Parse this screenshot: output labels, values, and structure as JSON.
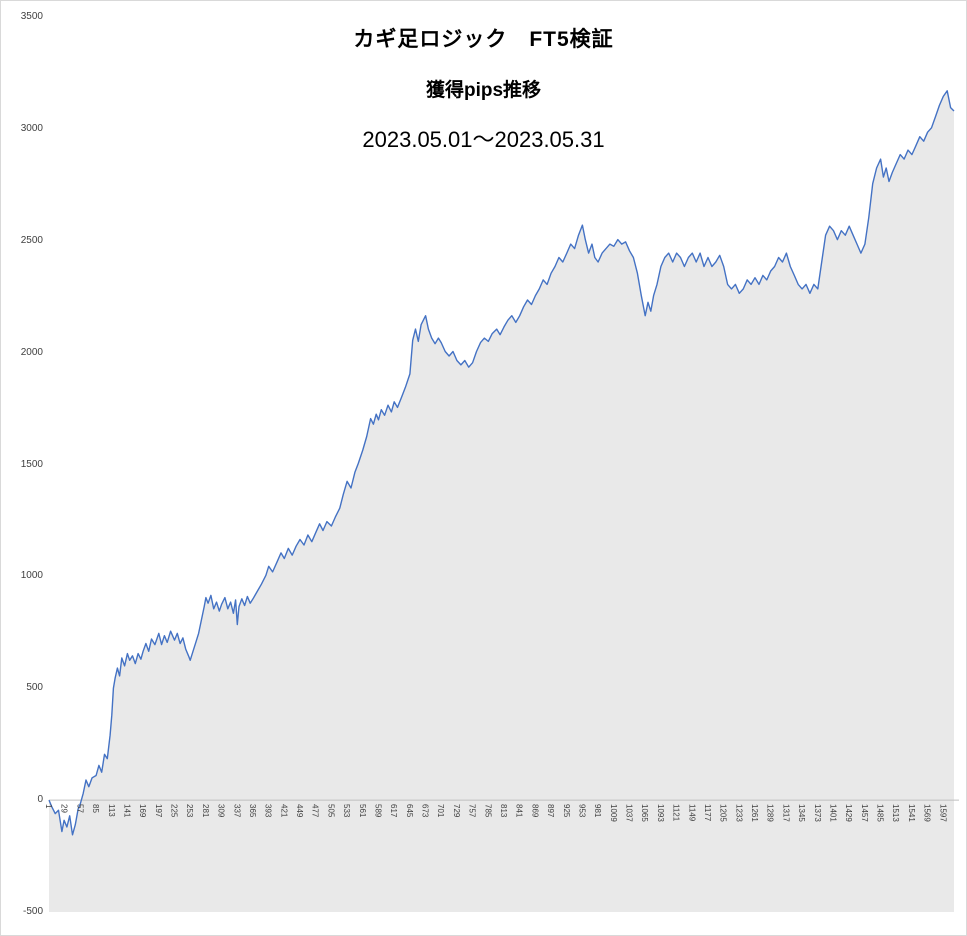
{
  "title": {
    "line1": "カギ足ロジック　FT5検証",
    "line2": "獲得pips推移",
    "line3": "2023.05.01～2023.05.31"
  },
  "chart_data": {
    "type": "area",
    "title": "カギ足ロジック FT5検証 獲得pips推移 2023.05.01～2023.05.31",
    "xlabel": "",
    "ylabel": "",
    "legend": "none",
    "grid": "off",
    "y_min": -500,
    "y_max": 3500,
    "x_min": 1,
    "x_max": 1625,
    "y_ticks": [
      3500,
      3000,
      2500,
      2000,
      1500,
      1000,
      500,
      0,
      -500
    ],
    "x_tick_step": 28,
    "x_tick_labels": [
      "1",
      "29",
      "57",
      "85",
      "113",
      "141",
      "169",
      "197",
      "225",
      "253",
      "281",
      "309",
      "337",
      "365",
      "393",
      "421",
      "449",
      "477",
      "505",
      "533",
      "561",
      "589",
      "617",
      "645",
      "673",
      "701",
      "729",
      "757",
      "785",
      "813",
      "841",
      "869",
      "897",
      "925",
      "953",
      "981",
      "1009",
      "1037",
      "1065",
      "1093",
      "1121",
      "1149",
      "1177",
      "1205",
      "1233",
      "1261",
      "1289",
      "1317",
      "1345",
      "1373",
      "1401",
      "1429",
      "1457",
      "1485",
      "1513",
      "1541",
      "1569",
      "1597"
    ],
    "colors": {
      "line": "#4472C4",
      "fill": "#e9e9e9",
      "zero_axis": "#bfbfbf",
      "tick_text": "#404040"
    },
    "series": [
      {
        "name": "獲得pips",
        "points": [
          [
            1,
            0
          ],
          [
            6,
            -30
          ],
          [
            12,
            -60
          ],
          [
            18,
            -45
          ],
          [
            24,
            -140
          ],
          [
            28,
            -90
          ],
          [
            33,
            -120
          ],
          [
            38,
            -70
          ],
          [
            43,
            -155
          ],
          [
            48,
            -110
          ],
          [
            53,
            -40
          ],
          [
            57,
            -15
          ],
          [
            62,
            30
          ],
          [
            67,
            90
          ],
          [
            72,
            60
          ],
          [
            78,
            100
          ],
          [
            85,
            110
          ],
          [
            90,
            155
          ],
          [
            95,
            125
          ],
          [
            100,
            205
          ],
          [
            105,
            185
          ],
          [
            110,
            290
          ],
          [
            113,
            380
          ],
          [
            116,
            500
          ],
          [
            119,
            545
          ],
          [
            123,
            590
          ],
          [
            127,
            555
          ],
          [
            131,
            635
          ],
          [
            136,
            600
          ],
          [
            141,
            655
          ],
          [
            145,
            625
          ],
          [
            150,
            645
          ],
          [
            155,
            610
          ],
          [
            160,
            655
          ],
          [
            165,
            630
          ],
          [
            169,
            665
          ],
          [
            174,
            700
          ],
          [
            179,
            665
          ],
          [
            184,
            720
          ],
          [
            190,
            695
          ],
          [
            197,
            745
          ],
          [
            202,
            695
          ],
          [
            207,
            735
          ],
          [
            212,
            705
          ],
          [
            218,
            755
          ],
          [
            225,
            715
          ],
          [
            230,
            745
          ],
          [
            235,
            700
          ],
          [
            240,
            725
          ],
          [
            245,
            675
          ],
          [
            250,
            645
          ],
          [
            253,
            625
          ],
          [
            258,
            665
          ],
          [
            263,
            705
          ],
          [
            268,
            745
          ],
          [
            273,
            805
          ],
          [
            278,
            865
          ],
          [
            281,
            905
          ],
          [
            285,
            880
          ],
          [
            290,
            915
          ],
          [
            295,
            855
          ],
          [
            300,
            885
          ],
          [
            305,
            845
          ],
          [
            309,
            875
          ],
          [
            315,
            905
          ],
          [
            320,
            855
          ],
          [
            325,
            885
          ],
          [
            330,
            835
          ],
          [
            334,
            895
          ],
          [
            337,
            785
          ],
          [
            340,
            865
          ],
          [
            345,
            900
          ],
          [
            350,
            870
          ],
          [
            355,
            910
          ],
          [
            360,
            880
          ],
          [
            365,
            900
          ],
          [
            372,
            930
          ],
          [
            380,
            965
          ],
          [
            388,
            1005
          ],
          [
            393,
            1045
          ],
          [
            400,
            1020
          ],
          [
            408,
            1065
          ],
          [
            415,
            1105
          ],
          [
            421,
            1080
          ],
          [
            428,
            1125
          ],
          [
            435,
            1095
          ],
          [
            442,
            1135
          ],
          [
            449,
            1165
          ],
          [
            456,
            1140
          ],
          [
            463,
            1185
          ],
          [
            470,
            1155
          ],
          [
            477,
            1195
          ],
          [
            484,
            1235
          ],
          [
            490,
            1205
          ],
          [
            497,
            1245
          ],
          [
            505,
            1225
          ],
          [
            512,
            1265
          ],
          [
            520,
            1305
          ],
          [
            526,
            1365
          ],
          [
            533,
            1425
          ],
          [
            540,
            1395
          ],
          [
            547,
            1465
          ],
          [
            553,
            1505
          ],
          [
            561,
            1565
          ],
          [
            568,
            1625
          ],
          [
            575,
            1705
          ],
          [
            580,
            1680
          ],
          [
            585,
            1725
          ],
          [
            589,
            1700
          ],
          [
            594,
            1745
          ],
          [
            600,
            1720
          ],
          [
            606,
            1765
          ],
          [
            612,
            1735
          ],
          [
            617,
            1780
          ],
          [
            623,
            1755
          ],
          [
            630,
            1800
          ],
          [
            637,
            1845
          ],
          [
            645,
            1905
          ],
          [
            650,
            2055
          ],
          [
            655,
            2105
          ],
          [
            660,
            2050
          ],
          [
            665,
            2125
          ],
          [
            670,
            2150
          ],
          [
            673,
            2165
          ],
          [
            678,
            2105
          ],
          [
            684,
            2065
          ],
          [
            690,
            2040
          ],
          [
            696,
            2065
          ],
          [
            701,
            2045
          ],
          [
            708,
            2005
          ],
          [
            715,
            1985
          ],
          [
            722,
            2005
          ],
          [
            729,
            1965
          ],
          [
            736,
            1945
          ],
          [
            743,
            1965
          ],
          [
            750,
            1935
          ],
          [
            757,
            1955
          ],
          [
            764,
            2005
          ],
          [
            771,
            2045
          ],
          [
            778,
            2065
          ],
          [
            785,
            2050
          ],
          [
            792,
            2085
          ],
          [
            800,
            2105
          ],
          [
            806,
            2080
          ],
          [
            813,
            2115
          ],
          [
            820,
            2145
          ],
          [
            827,
            2165
          ],
          [
            834,
            2135
          ],
          [
            841,
            2165
          ],
          [
            848,
            2205
          ],
          [
            855,
            2235
          ],
          [
            862,
            2215
          ],
          [
            869,
            2255
          ],
          [
            876,
            2285
          ],
          [
            883,
            2325
          ],
          [
            890,
            2305
          ],
          [
            897,
            2355
          ],
          [
            904,
            2385
          ],
          [
            911,
            2425
          ],
          [
            918,
            2405
          ],
          [
            925,
            2445
          ],
          [
            932,
            2485
          ],
          [
            939,
            2465
          ],
          [
            946,
            2525
          ],
          [
            953,
            2570
          ],
          [
            958,
            2505
          ],
          [
            964,
            2445
          ],
          [
            970,
            2485
          ],
          [
            975,
            2425
          ],
          [
            981,
            2405
          ],
          [
            988,
            2445
          ],
          [
            995,
            2465
          ],
          [
            1002,
            2485
          ],
          [
            1009,
            2475
          ],
          [
            1016,
            2505
          ],
          [
            1023,
            2485
          ],
          [
            1030,
            2495
          ],
          [
            1037,
            2455
          ],
          [
            1044,
            2425
          ],
          [
            1051,
            2355
          ],
          [
            1058,
            2255
          ],
          [
            1065,
            2165
          ],
          [
            1070,
            2225
          ],
          [
            1075,
            2185
          ],
          [
            1080,
            2255
          ],
          [
            1086,
            2305
          ],
          [
            1093,
            2385
          ],
          [
            1100,
            2425
          ],
          [
            1107,
            2445
          ],
          [
            1114,
            2405
          ],
          [
            1121,
            2445
          ],
          [
            1128,
            2425
          ],
          [
            1135,
            2385
          ],
          [
            1142,
            2425
          ],
          [
            1149,
            2445
          ],
          [
            1156,
            2405
          ],
          [
            1163,
            2445
          ],
          [
            1170,
            2385
          ],
          [
            1177,
            2425
          ],
          [
            1184,
            2385
          ],
          [
            1191,
            2405
          ],
          [
            1198,
            2435
          ],
          [
            1205,
            2385
          ],
          [
            1212,
            2305
          ],
          [
            1219,
            2285
          ],
          [
            1226,
            2305
          ],
          [
            1233,
            2265
          ],
          [
            1240,
            2285
          ],
          [
            1247,
            2325
          ],
          [
            1254,
            2305
          ],
          [
            1261,
            2335
          ],
          [
            1268,
            2305
          ],
          [
            1275,
            2345
          ],
          [
            1282,
            2325
          ],
          [
            1289,
            2365
          ],
          [
            1296,
            2385
          ],
          [
            1303,
            2425
          ],
          [
            1310,
            2405
          ],
          [
            1317,
            2445
          ],
          [
            1324,
            2385
          ],
          [
            1331,
            2345
          ],
          [
            1338,
            2305
          ],
          [
            1345,
            2285
          ],
          [
            1352,
            2305
          ],
          [
            1359,
            2265
          ],
          [
            1366,
            2305
          ],
          [
            1373,
            2285
          ],
          [
            1380,
            2405
          ],
          [
            1387,
            2525
          ],
          [
            1394,
            2565
          ],
          [
            1401,
            2545
          ],
          [
            1408,
            2505
          ],
          [
            1415,
            2545
          ],
          [
            1422,
            2525
          ],
          [
            1429,
            2565
          ],
          [
            1436,
            2525
          ],
          [
            1443,
            2485
          ],
          [
            1450,
            2445
          ],
          [
            1457,
            2485
          ],
          [
            1464,
            2605
          ],
          [
            1471,
            2755
          ],
          [
            1478,
            2825
          ],
          [
            1485,
            2865
          ],
          [
            1490,
            2785
          ],
          [
            1495,
            2825
          ],
          [
            1500,
            2765
          ],
          [
            1506,
            2805
          ],
          [
            1513,
            2845
          ],
          [
            1520,
            2885
          ],
          [
            1527,
            2865
          ],
          [
            1534,
            2905
          ],
          [
            1541,
            2885
          ],
          [
            1548,
            2925
          ],
          [
            1555,
            2965
          ],
          [
            1562,
            2945
          ],
          [
            1569,
            2985
          ],
          [
            1576,
            3005
          ],
          [
            1583,
            3055
          ],
          [
            1590,
            3105
          ],
          [
            1597,
            3145
          ],
          [
            1604,
            3170
          ],
          [
            1610,
            3095
          ],
          [
            1616,
            3080
          ]
        ]
      }
    ]
  }
}
